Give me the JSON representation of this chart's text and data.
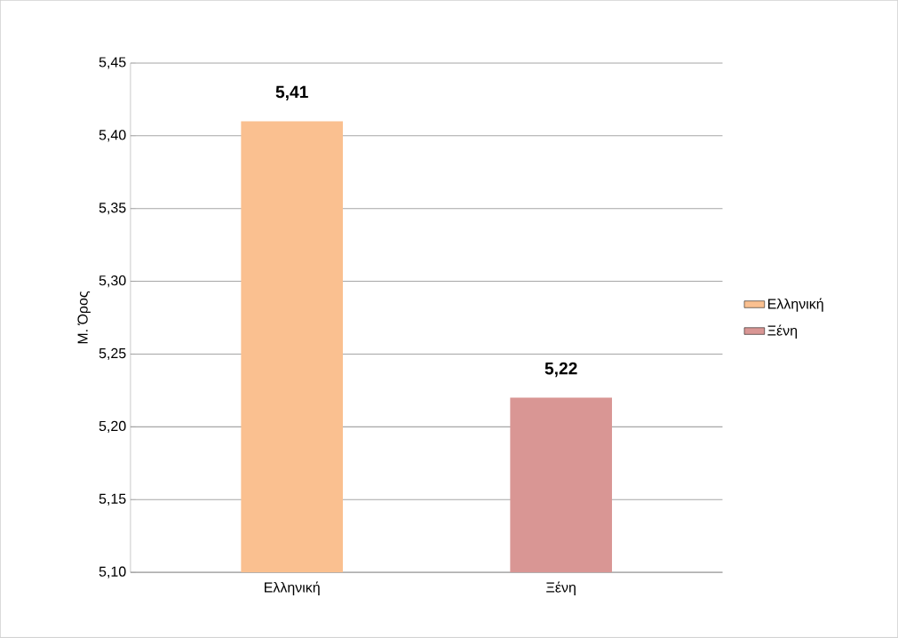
{
  "chart_data": {
    "type": "bar",
    "ylabel": "Μ. Όρος",
    "categories": [
      "Ελληνική",
      "Ξένη"
    ],
    "series": [
      {
        "name": "Ελληνική",
        "color": "#fac090",
        "values": [
          5.41,
          null
        ],
        "value_labels": [
          "5,41",
          null
        ]
      },
      {
        "name": "Ξένη",
        "color": "#d99694",
        "values": [
          null,
          5.22
        ],
        "value_labels": [
          null,
          "5,22"
        ]
      }
    ],
    "ylim": [
      5.1,
      5.45
    ],
    "yticks": [
      {
        "value": 5.1,
        "label": "5,10"
      },
      {
        "value": 5.15,
        "label": "5,15"
      },
      {
        "value": 5.2,
        "label": "5,20"
      },
      {
        "value": 5.25,
        "label": "5,25"
      },
      {
        "value": 5.3,
        "label": "5,30"
      },
      {
        "value": 5.35,
        "label": "5,35"
      },
      {
        "value": 5.4,
        "label": "5,40"
      },
      {
        "value": 5.45,
        "label": "5,45"
      }
    ],
    "grid": "y",
    "legend": "right"
  }
}
